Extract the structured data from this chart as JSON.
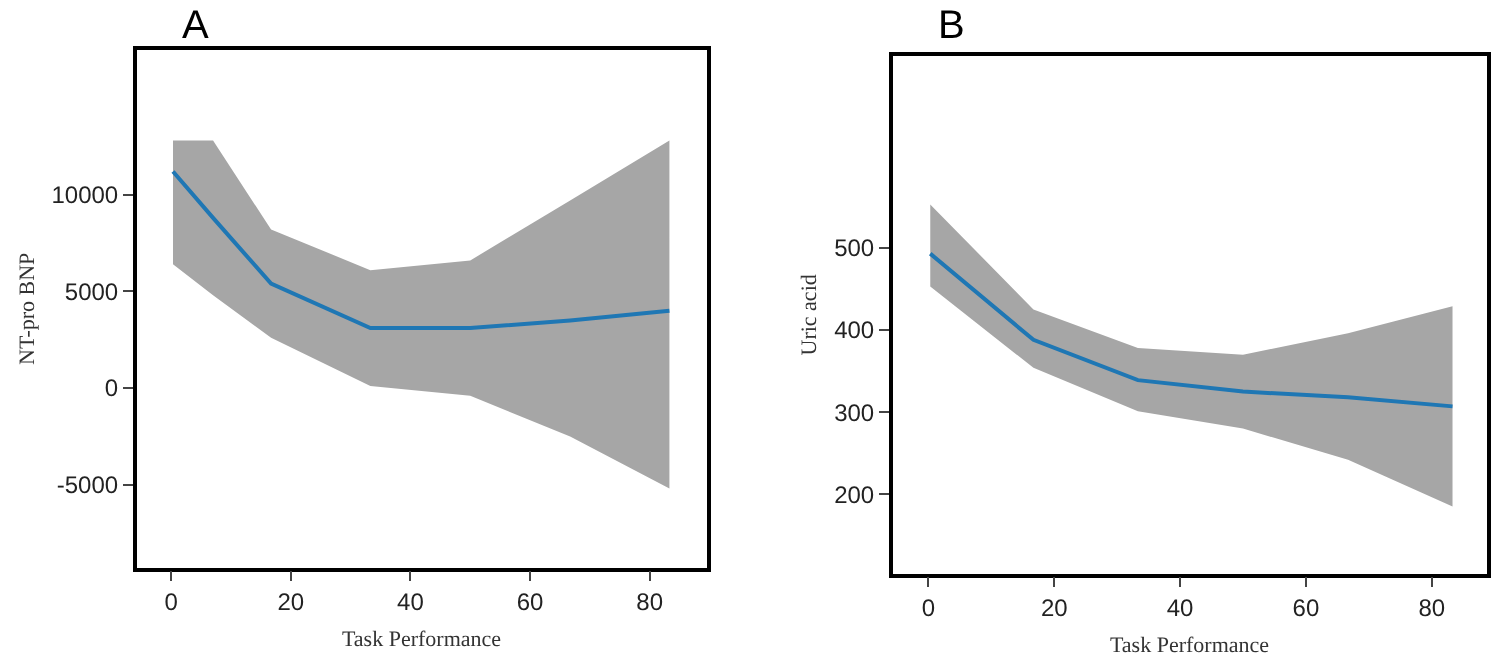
{
  "chart_data": [
    {
      "type": "line",
      "title": "A",
      "xlabel": "Task Performance",
      "ylabel": "NT-pro BNP",
      "x": [
        0.3,
        7,
        16.7,
        33.3,
        50,
        66.7,
        83.3
      ],
      "series": [
        {
          "color": "#1f77b4",
          "values": [
            11200,
            8800,
            5400,
            3100,
            3100,
            3500,
            4000
          ],
          "lower": [
            6400,
            4800,
            2600,
            100,
            -400,
            -2500,
            -5200
          ],
          "upper": [
            12800,
            12800,
            8200,
            6100,
            6600,
            9700,
            12800
          ]
        }
      ],
      "xlim": [
        -5.8,
        89.5
      ],
      "xticks": [
        0,
        20,
        40,
        60,
        80
      ],
      "ylim": [
        -9300,
        17500
      ],
      "yticks": [
        -5000,
        0,
        5000,
        10000
      ],
      "line_style": "solid",
      "marker": "none"
    },
    {
      "type": "line",
      "title": "B",
      "xlabel": "Task Performance",
      "ylabel": "Uric acid",
      "x": [
        0.3,
        16.7,
        33.3,
        50,
        66.7,
        83.3
      ],
      "series": [
        {
          "color": "#1f77b4",
          "values": [
            493,
            388,
            339,
            325,
            318,
            307
          ],
          "lower": [
            453,
            354,
            301,
            280,
            242,
            185
          ],
          "upper": [
            553,
            425,
            378,
            370,
            396,
            429
          ]
        }
      ],
      "xlim": [
        -5.7,
        88.7
      ],
      "xticks": [
        0,
        20,
        40,
        60,
        80
      ],
      "ylim": [
        103,
        734
      ],
      "yticks": [
        200,
        300,
        400,
        500
      ],
      "line_style": "solid",
      "marker": "none"
    }
  ]
}
